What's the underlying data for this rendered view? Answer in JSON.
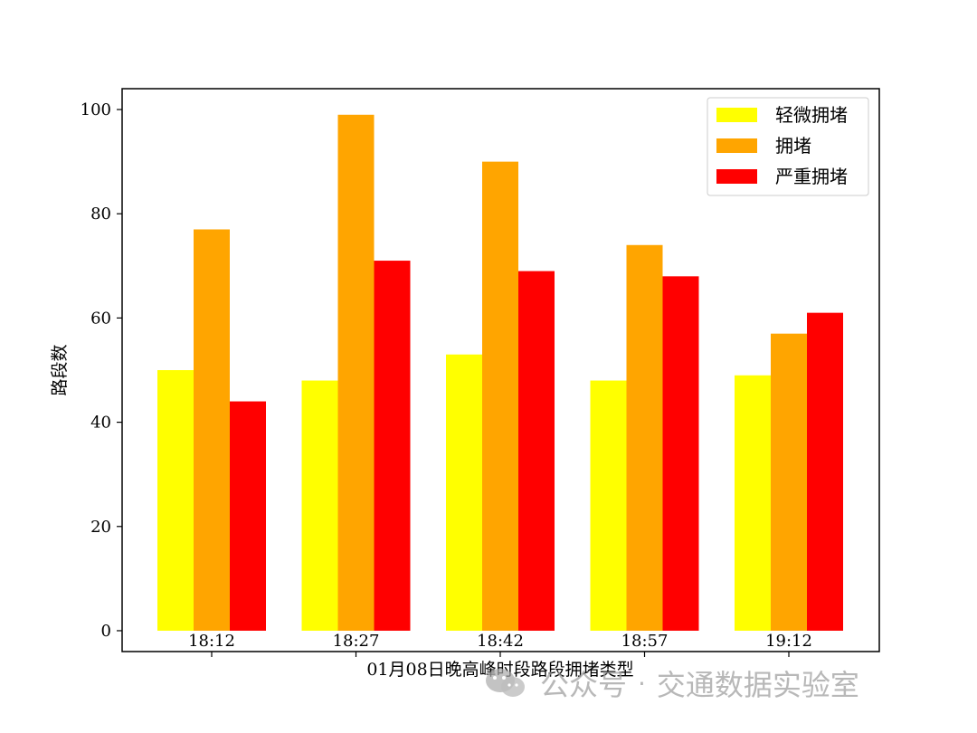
{
  "chart_data": {
    "type": "bar",
    "categories": [
      "18:12",
      "18:27",
      "18:42",
      "18:57",
      "19:12"
    ],
    "series": [
      {
        "name": "轻微拥堵",
        "color": "#ffff00",
        "values": [
          50,
          48,
          53,
          48,
          49
        ]
      },
      {
        "name": "拥堵",
        "color": "#ffa500",
        "values": [
          77,
          99,
          90,
          74,
          57
        ]
      },
      {
        "name": "严重拥堵",
        "color": "#ff0000",
        "values": [
          44,
          71,
          69,
          68,
          61
        ]
      }
    ],
    "xlabel": "01月08日晚高峰时段路段拥堵类型",
    "ylabel": "路段数",
    "ylim": [
      -4,
      104
    ],
    "yticks": [
      0,
      20,
      40,
      60,
      80,
      100
    ],
    "grid": false,
    "legend_position": "top-right"
  },
  "watermark": {
    "icon": "wechat-icon",
    "brand": "公众号",
    "separator": "·",
    "account": "交通数据实验室"
  }
}
